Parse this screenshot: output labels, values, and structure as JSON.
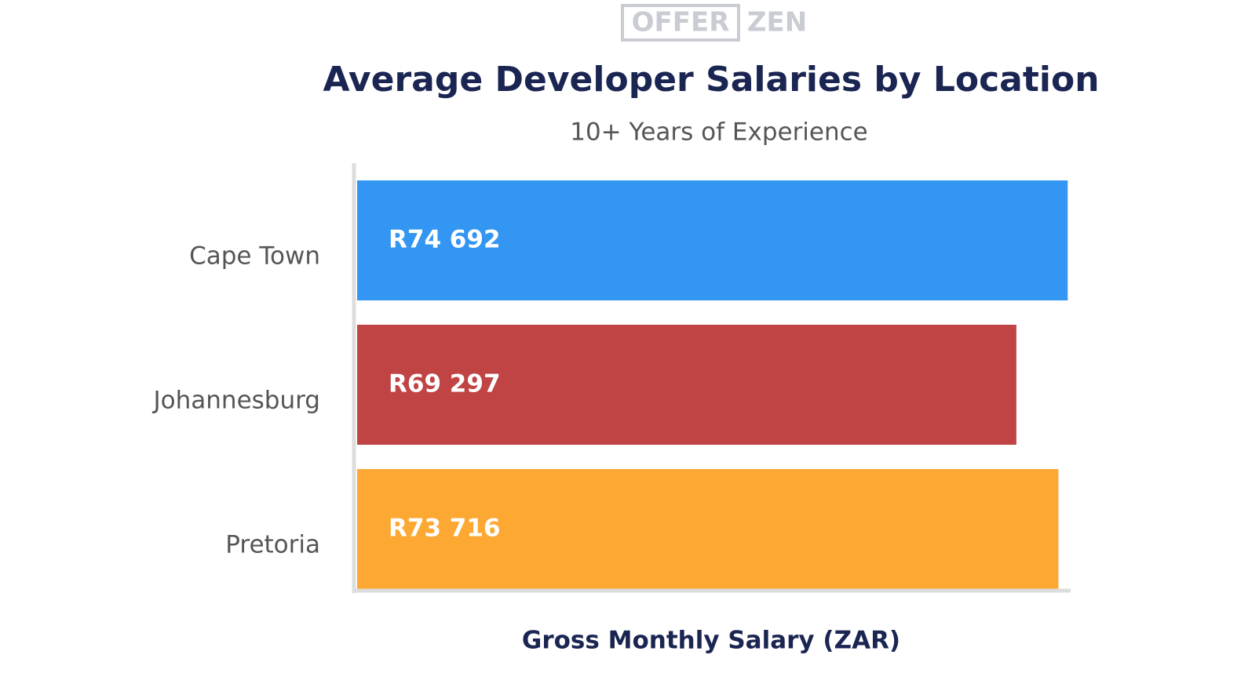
{
  "chart_data": {
    "type": "hbar",
    "logo": {
      "left": "OFFER",
      "right": "ZEN"
    },
    "title": "Average Developer Salaries by Location",
    "subtitle": "10+ Years of Experience",
    "x_label": "Gross Monthly Salary (ZAR)",
    "categories": [
      "Cape Town",
      "Johannesburg",
      "Pretoria"
    ],
    "values": [
      74692,
      69297,
      73716
    ],
    "value_labels": [
      "R74 692",
      "R69 297",
      "R73 716"
    ],
    "colors": [
      "#3396f2",
      "#c04444",
      "#fca833"
    ],
    "xlim": [
      0,
      75000
    ]
  }
}
